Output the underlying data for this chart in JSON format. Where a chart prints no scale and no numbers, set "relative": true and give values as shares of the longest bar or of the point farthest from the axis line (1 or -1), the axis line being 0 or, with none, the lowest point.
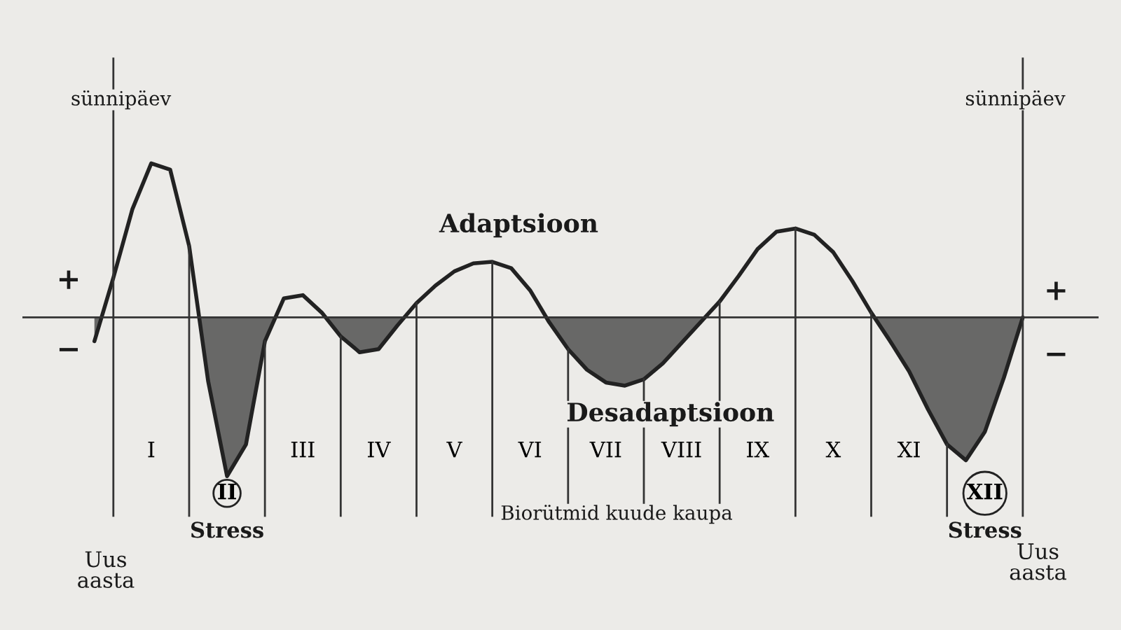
{
  "chart_data": {
    "type": "line",
    "relative": true,
    "categories": [
      null,
      null,
      null,
      "I",
      null,
      null,
      null,
      "II",
      null,
      null,
      null,
      "III",
      null,
      null,
      null,
      "IV",
      null,
      null,
      null,
      "V",
      null,
      null,
      null,
      "VI",
      null,
      null,
      null,
      "VII",
      null,
      null,
      null,
      "VIII",
      null,
      null,
      null,
      "IX",
      null,
      null,
      null,
      "X",
      null,
      null,
      null,
      "XI",
      null,
      null,
      null,
      "XII",
      null,
      null
    ],
    "series": [
      {
        "color": "#222222",
        "values": [
          -0.15,
          0.25,
          0.68,
          0.97,
          0.93,
          0.45,
          -0.4,
          -1,
          -0.8,
          -0.15,
          0.12,
          0.14,
          0.03,
          -0.12,
          -0.22,
          -0.2,
          -0.05,
          0.09,
          0.2,
          0.29,
          0.34,
          0.35,
          0.31,
          0.17,
          -0.03,
          -0.2,
          -0.33,
          -0.41,
          -0.43,
          -0.39,
          -0.29,
          -0.16,
          -0.03,
          0.1,
          0.26,
          0.43,
          0.54,
          0.56,
          0.52,
          0.41,
          0.23,
          0.03,
          -0.15,
          -0.34,
          -0.58,
          -0.8,
          -0.9,
          -0.72,
          -0.38,
          0
        ]
      }
    ],
    "grid": "x",
    "annotations": [
      "sünnipäev",
      "sünnipäev",
      "+",
      "−",
      "+",
      "−",
      "Adaptsioon",
      "Desadaptsioon",
      "Stress",
      "Stress",
      "Biorütmid kuude kaupa",
      "Uus\naasta",
      "Uus\naasta"
    ]
  }
}
